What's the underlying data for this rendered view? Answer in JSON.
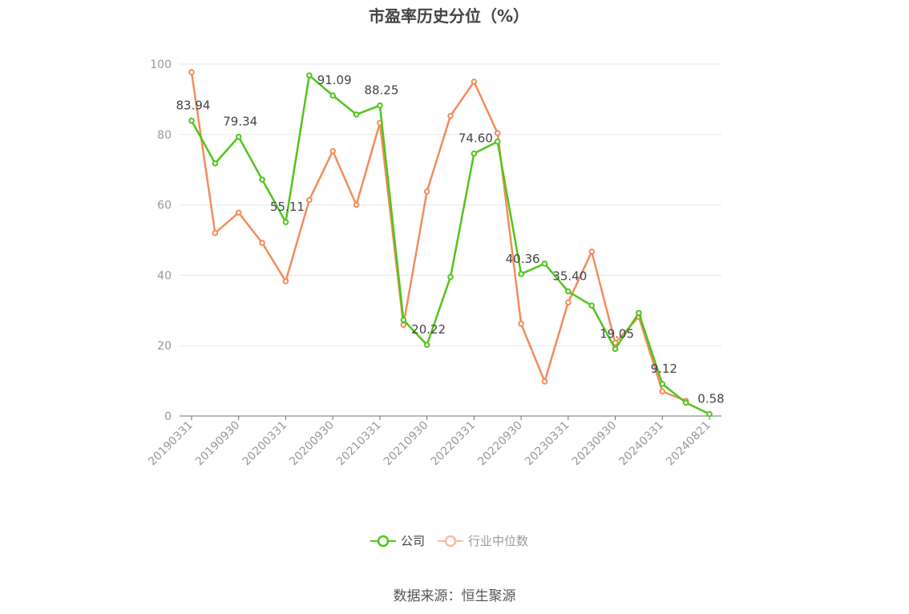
{
  "title": "市盈率历史分位（%）",
  "source": "数据来源：恒生聚源",
  "legend": [
    {
      "label": "公司",
      "color": "#52c41a"
    },
    {
      "label": "行业中位数",
      "color": "#ffb99c"
    }
  ],
  "chart_data": {
    "type": "line",
    "title": "市盈率历史分位（%）",
    "ylim": [
      0,
      100
    ],
    "yticks": [
      0,
      20,
      40,
      60,
      80,
      100
    ],
    "x": [
      "20190331",
      "20190630",
      "20190930",
      "20191231",
      "20200331",
      "20200630",
      "20200930",
      "20201231",
      "20210331",
      "20210630",
      "20210930",
      "20211231",
      "20220331",
      "20220630",
      "20220930",
      "20221231",
      "20230331",
      "20230630",
      "20230930",
      "20231231",
      "20240331",
      "20240630",
      "20240821"
    ],
    "xtick_labels": [
      "20190331",
      "20190930",
      "20200331",
      "20200930",
      "20210331",
      "20210930",
      "20220331",
      "20220930",
      "20230331",
      "20230930",
      "20240331",
      "20240821"
    ],
    "grid": true,
    "legend_position": "bottom",
    "series": [
      {
        "name": "公司",
        "color": "#52c41a",
        "values": [
          83.94,
          71.8,
          79.34,
          67.2,
          55.11,
          96.8,
          91.09,
          85.7,
          88.25,
          27.3,
          20.22,
          39.5,
          74.6,
          78.0,
          40.36,
          43.3,
          35.4,
          31.4,
          19.05,
          29.3,
          9.12,
          3.8,
          0.58
        ],
        "labels": {
          "0": "83.94",
          "2": "79.34",
          "4": "55.11",
          "6": "91.09",
          "8": "88.25",
          "10": "20.22",
          "12": "74.60",
          "14": "40.36",
          "16": "35.40",
          "18": "19.05",
          "20": "9.12",
          "22": "0.58"
        }
      },
      {
        "name": "行业中位数",
        "color": "#f28c5b",
        "values": [
          97.7,
          52.0,
          57.8,
          49.2,
          38.3,
          61.4,
          75.3,
          60.0,
          83.3,
          25.9,
          63.8,
          85.3,
          95.0,
          80.4,
          26.2,
          9.8,
          32.3,
          46.7,
          20.8,
          28.2,
          7.0,
          4.3,
          null
        ]
      }
    ]
  }
}
